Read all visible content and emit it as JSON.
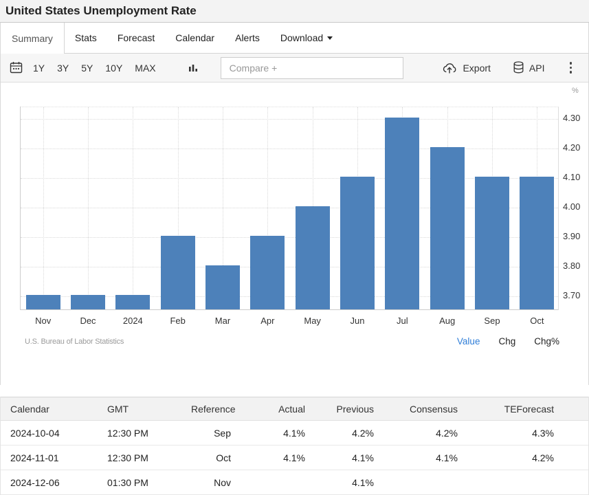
{
  "header": {
    "title": "United States Unemployment Rate"
  },
  "tabs": {
    "items": [
      {
        "label": "Summary",
        "active": true
      },
      {
        "label": "Stats"
      },
      {
        "label": "Forecast"
      },
      {
        "label": "Calendar"
      },
      {
        "label": "Alerts"
      },
      {
        "label": "Download",
        "caret": true
      }
    ]
  },
  "toolbar": {
    "ranges": [
      "1Y",
      "3Y",
      "5Y",
      "10Y",
      "MAX"
    ],
    "compare_placeholder": "Compare +",
    "export_label": "Export",
    "api_label": "API"
  },
  "chart_data": {
    "type": "bar",
    "title": "United States Unemployment Rate",
    "unit": "%",
    "categories": [
      "Nov",
      "Dec",
      "2024",
      "Feb",
      "Mar",
      "Apr",
      "May",
      "Jun",
      "Jul",
      "Aug",
      "Sep",
      "Oct"
    ],
    "values": [
      3.7,
      3.7,
      3.7,
      3.9,
      3.8,
      3.9,
      4.0,
      4.1,
      4.3,
      4.2,
      4.1,
      4.1
    ],
    "ylim": [
      3.65,
      4.34
    ],
    "y_ticks": [
      3.7,
      3.8,
      3.9,
      4.0,
      4.1,
      4.2,
      4.3
    ],
    "y_tick_labels": [
      "3.70",
      "3.80",
      "3.90",
      "4.00",
      "4.10",
      "4.20",
      "4.30"
    ],
    "grid": "dotted",
    "legend": "none",
    "bar_color": "#4d81ba",
    "source": "U.S. Bureau of Labor Statistics"
  },
  "chart_footer": {
    "views": [
      {
        "label": "Value",
        "active": true
      },
      {
        "label": "Chg"
      },
      {
        "label": "Chg%"
      }
    ]
  },
  "calendar_table": {
    "headers": [
      "Calendar",
      "GMT",
      "Reference",
      "Actual",
      "Previous",
      "Consensus",
      "TEForecast"
    ],
    "rows": [
      [
        "2024-10-04",
        "12:30 PM",
        "Sep",
        "4.1%",
        "4.2%",
        "4.2%",
        "4.3%"
      ],
      [
        "2024-11-01",
        "12:30 PM",
        "Oct",
        "4.1%",
        "4.1%",
        "4.1%",
        "4.2%"
      ],
      [
        "2024-12-06",
        "01:30 PM",
        "Nov",
        "",
        "4.1%",
        "",
        ""
      ]
    ]
  },
  "colors": {
    "accent_blue": "#2f7ed8",
    "bar_blue": "#4d81ba"
  }
}
